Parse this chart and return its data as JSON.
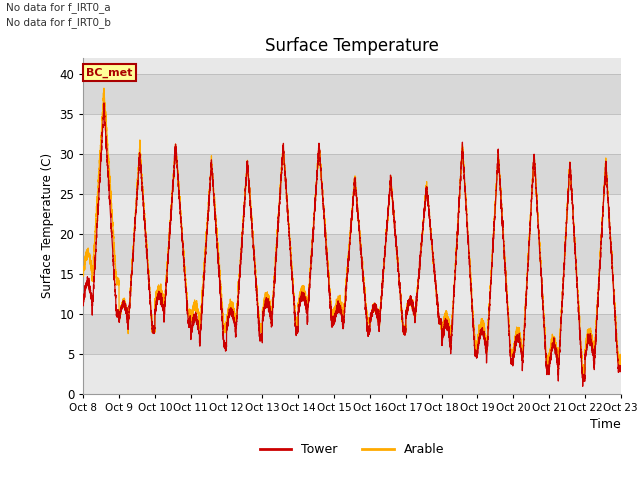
{
  "title": "Surface Temperature",
  "ylabel": "Surface Temperature (C)",
  "xlabel": "Time",
  "annotation_text": "BC_met",
  "note_lines": [
    "No data for f_IRT0_a",
    "No data for f_IRT0_b"
  ],
  "xtick_labels": [
    "Oct 8",
    "Oct 9",
    "Oct 10",
    "Oct 11",
    "Oct 12",
    "Oct 13",
    "Oct 14",
    "Oct 15",
    "Oct 16",
    "Oct 17",
    "Oct 18",
    "Oct 19",
    "Oct 20",
    "Oct 21",
    "Oct 22",
    "Oct 23"
  ],
  "ylim": [
    0,
    42
  ],
  "yticks": [
    0,
    5,
    10,
    15,
    20,
    25,
    30,
    35,
    40
  ],
  "tower_color": "#cc0000",
  "arable_color": "#ffaa00",
  "bc_met_facecolor": "#ffff99",
  "bc_met_edgecolor": "#aa0000",
  "bc_met_textcolor": "#aa0000",
  "legend_labels": [
    "Tower",
    "Arable"
  ],
  "plot_bg_light": "#e8e8e8",
  "plot_bg_dark": "#d8d8d8",
  "grid_color": "#cccccc",
  "daily_max_tower": [
    36,
    30,
    31,
    29,
    29,
    31,
    31,
    27,
    27,
    26,
    31,
    30,
    30,
    29,
    29
  ],
  "daily_min_tower": [
    10,
    8,
    9,
    6,
    7,
    8,
    9,
    8,
    8,
    9,
    5,
    4,
    3,
    2,
    3
  ],
  "daily_max_arable": [
    38,
    31,
    31,
    29,
    29,
    31,
    31,
    27,
    27,
    26,
    31,
    30,
    30,
    29,
    29
  ],
  "daily_min_arable": [
    14,
    8,
    10,
    8,
    8,
    9,
    10,
    9,
    8,
    9,
    6,
    5,
    4,
    3,
    4
  ],
  "n_days": 15,
  "pts_per_day": 480
}
